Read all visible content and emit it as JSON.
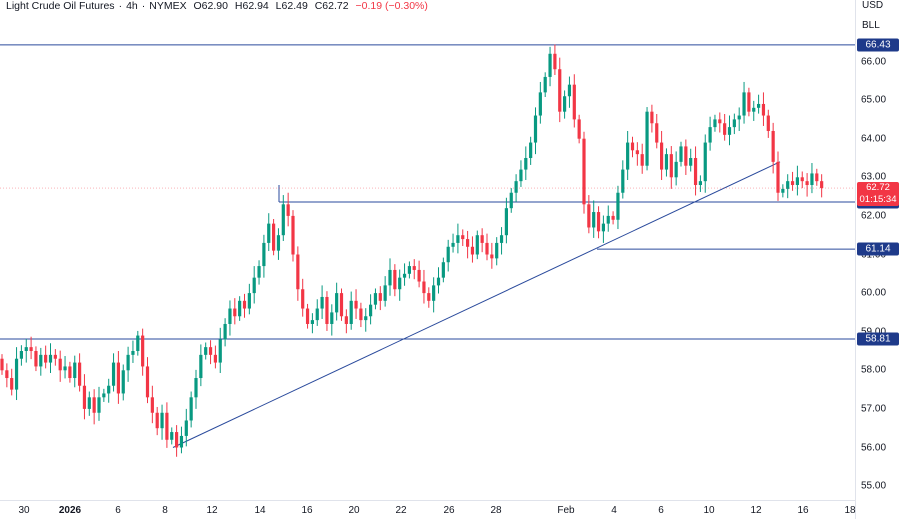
{
  "header": {
    "symbol": "Light Crude Oil Futures",
    "timeframe": "4h",
    "exchange": "NYMEX",
    "open": "O62.90",
    "high": "H62.94",
    "low": "L62.49",
    "close": "C62.72",
    "change": "−0.19 (−0.30%)"
  },
  "axis": {
    "currency": "USD",
    "ticker": "BLL"
  },
  "price_ticks": [
    "66.00",
    "65.00",
    "64.00",
    "63.00",
    "62.00",
    "61.00",
    "60.00",
    "59.00",
    "58.00",
    "57.00",
    "56.00",
    "55.00"
  ],
  "time_ticks": [
    "30",
    "2026",
    "6",
    "8",
    "12",
    "14",
    "16",
    "20",
    "22",
    "26",
    "28",
    "Feb",
    "4",
    "6",
    "10",
    "12",
    "16",
    "18"
  ],
  "level_tags": [
    "66.43",
    "62.36",
    "61.14",
    "58.81"
  ],
  "current_price": {
    "value": "62.72",
    "countdown": "01:15:34"
  },
  "colors": {
    "up": "#089981",
    "down": "#f23645",
    "line": "#2a4a9c",
    "tag": "#1e3a8a"
  },
  "chart_data": {
    "type": "candlestick",
    "title": "Light Crude Oil Futures · 4h · NYMEX",
    "ylim": [
      54.6,
      67.0
    ],
    "horizontal_levels": [
      66.43,
      62.36,
      61.14,
      58.81
    ],
    "trendlines": [
      {
        "from": [
          "Jan 8",
          56.0
        ],
        "to": [
          "Feb 13",
          63.4
        ]
      }
    ],
    "x_ticks": [
      "30",
      "2026",
      "6",
      "8",
      "12",
      "14",
      "16",
      "20",
      "22",
      "26",
      "28",
      "Feb",
      "4",
      "6",
      "10",
      "12",
      "16",
      "18"
    ],
    "close_path": [
      58.0,
      57.8,
      57.5,
      58.3,
      58.5,
      58.6,
      58.5,
      58.1,
      58.4,
      58.2,
      58.4,
      58.3,
      58.0,
      58.1,
      57.8,
      58.2,
      57.6,
      57.0,
      57.3,
      56.9,
      57.3,
      57.4,
      57.6,
      58.2,
      57.4,
      58.0,
      58.4,
      58.5,
      58.9,
      58.1,
      57.3,
      56.9,
      56.5,
      56.9,
      56.2,
      56.4,
      56.0,
      56.3,
      56.7,
      57.3,
      57.8,
      58.4,
      58.6,
      58.4,
      58.2,
      58.8,
      59.2,
      59.6,
      59.4,
      59.8,
      59.6,
      60.0,
      60.4,
      60.7,
      61.3,
      61.8,
      61.1,
      61.5,
      62.3,
      62.0,
      61.0,
      60.1,
      59.6,
      59.2,
      59.3,
      59.6,
      59.9,
      59.2,
      59.5,
      60.0,
      59.4,
      59.2,
      59.8,
      59.6,
      59.3,
      59.4,
      59.7,
      60.0,
      59.8,
      60.2,
      60.6,
      60.1,
      60.4,
      60.5,
      60.7,
      60.6,
      60.3,
      60.0,
      59.8,
      60.2,
      60.4,
      60.8,
      61.2,
      61.3,
      61.5,
      61.4,
      61.2,
      61.0,
      61.5,
      61.3,
      61.0,
      60.9,
      61.3,
      61.5,
      62.2,
      62.6,
      62.9,
      63.2,
      63.5,
      63.9,
      64.6,
      65.2,
      65.6,
      66.2,
      65.8,
      64.7,
      65.1,
      65.4,
      64.5,
      64.0,
      62.3,
      61.7,
      62.1,
      61.6,
      61.8,
      62.0,
      61.9,
      62.6,
      63.2,
      63.9,
      63.7,
      63.6,
      63.3,
      64.7,
      64.4,
      63.9,
      63.2,
      63.6,
      63.0,
      63.4,
      63.8,
      63.3,
      63.5,
      62.8,
      62.9,
      63.9,
      64.3,
      64.5,
      64.4,
      64.1,
      64.3,
      64.5,
      64.6,
      65.2,
      64.7,
      64.8,
      64.9,
      64.6,
      64.2,
      63.4,
      62.6,
      62.7,
      62.9,
      62.8,
      63.0,
      62.9,
      62.8,
      63.1,
      62.9,
      62.72
    ]
  }
}
